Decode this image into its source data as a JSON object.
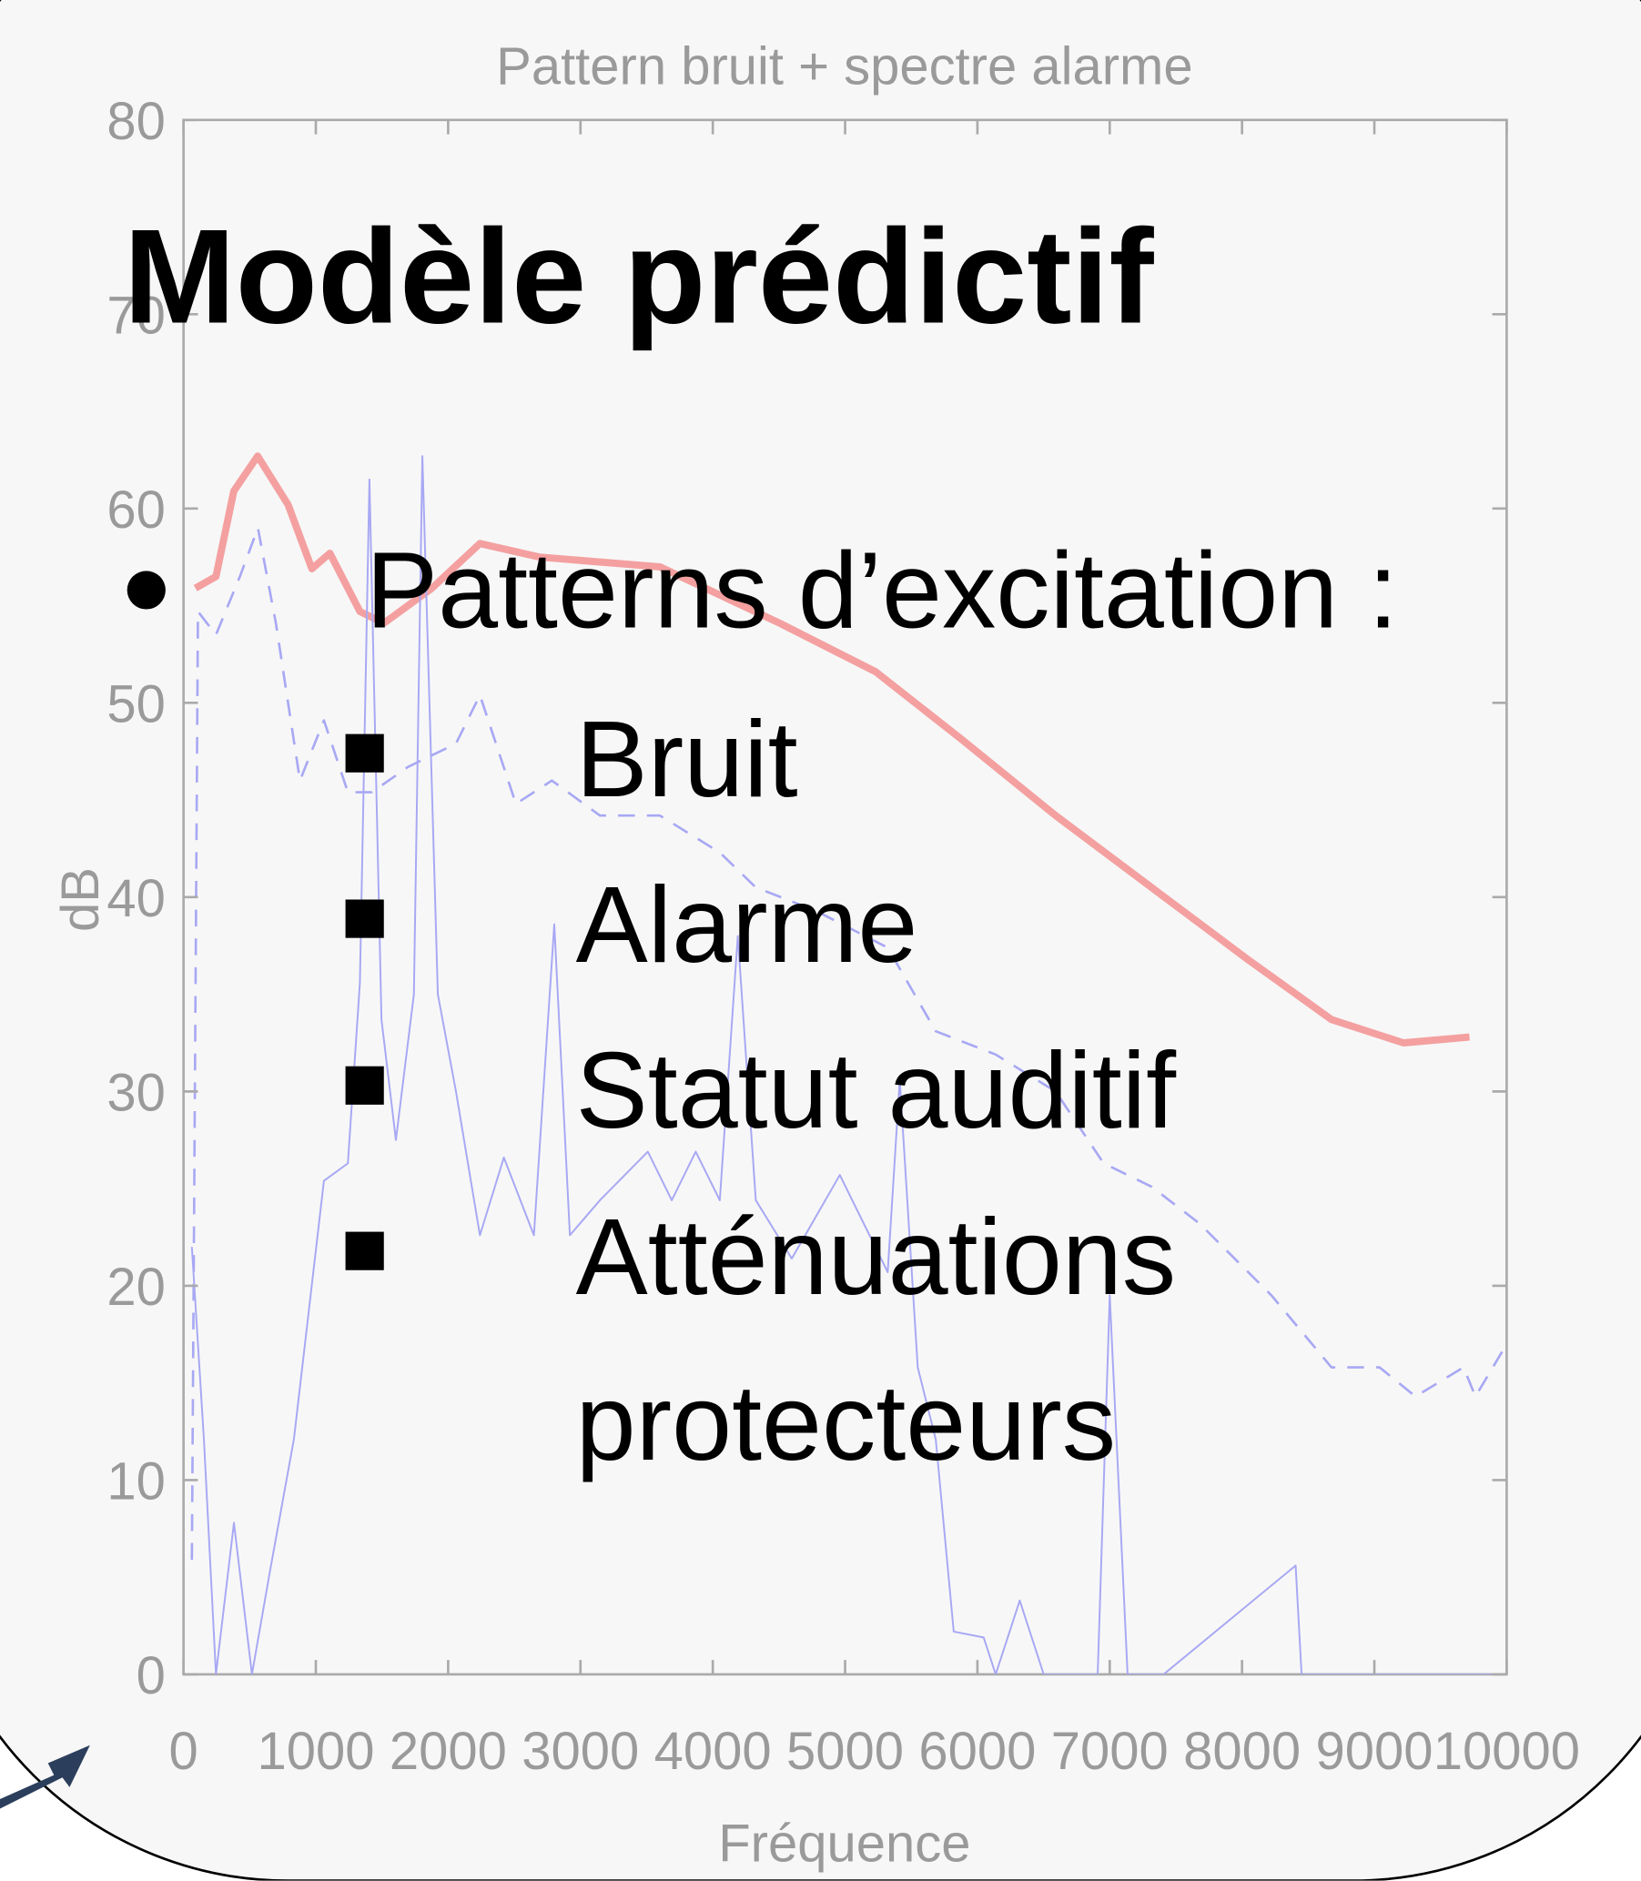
{
  "slide": {
    "title": "Modèle prédictif",
    "bullet": "Patterns d’excitation :",
    "items": [
      "Bruit",
      "Alarme",
      "Statut auditif",
      "Atténuations protecteurs"
    ]
  },
  "chart_data": {
    "type": "line",
    "title": "Pattern bruit + spectre alarme",
    "x_label": "Fréquence",
    "y_label": "dB",
    "xlim": [
      0,
      10000
    ],
    "ylim": [
      0,
      80
    ],
    "xticks": [
      0,
      1000,
      2000,
      3000,
      4000,
      5000,
      6000,
      7000,
      8000,
      9000,
      10000
    ],
    "yticks": [
      0,
      10,
      20,
      30,
      40,
      50,
      60,
      70,
      80
    ],
    "series": [
      {
        "color": "#f4a0a0",
        "line_style": "solid",
        "linewidth": 6,
        "x": [
          90,
          245,
          380,
          560,
          790,
          970,
          1106,
          1333,
          1514,
          1877,
          2240,
          2693,
          3600,
          4506,
          5231,
          5866,
          6591,
          7316,
          8042,
          8676,
          9220,
          9719
        ],
        "values": [
          55.9,
          56.5,
          60.9,
          62.7,
          60.2,
          56.9,
          57.7,
          54.7,
          54.1,
          55.9,
          58.2,
          57.5,
          57.0,
          54.1,
          51.6,
          48.2,
          44.2,
          40.5,
          36.8,
          33.7,
          32.5,
          32.8
        ]
      },
      {
        "color": "#a8a8f4",
        "line_style": "dashed",
        "linewidth": 2,
        "x": [
          63,
          109,
          245,
          426,
          562,
          698,
          880,
          1061,
          1242,
          1424,
          1696,
          2059,
          2240,
          2512,
          2784,
          3147,
          3600,
          4053,
          4325,
          4778,
          5322,
          5685,
          6138,
          6591,
          6954,
          7316,
          7679,
          8223,
          8676,
          9039,
          9311,
          9674,
          9764,
          10000
        ],
        "values": [
          5.9,
          54.7,
          53.5,
          56.5,
          59.0,
          54.1,
          46.0,
          49.1,
          45.4,
          45.4,
          46.7,
          47.9,
          50.4,
          44.8,
          46.0,
          44.2,
          44.2,
          42.3,
          40.5,
          39.3,
          37.4,
          33.1,
          31.9,
          30.0,
          26.3,
          25.1,
          23.2,
          19.5,
          15.8,
          15.8,
          14.3,
          15.8,
          14.3,
          17.0
        ]
      },
      {
        "color": "#a8a8f4",
        "line_style": "solid",
        "linewidth": 1.5,
        "x": [
          63,
          154,
          245,
          381,
          517,
          653,
          834,
          1061,
          1242,
          1333,
          1405,
          1496,
          1605,
          1741,
          1805,
          1922,
          2059,
          2240,
          2421,
          2648,
          2802,
          2920,
          3147,
          3509,
          3690,
          3871,
          4053,
          4189,
          4325,
          4597,
          4960,
          5322,
          5413,
          5549,
          5685,
          5821,
          6047,
          6138,
          6320,
          6501,
          6909,
          7000,
          7135,
          7407,
          8405,
          8450,
          10000
        ],
        "values": [
          22,
          12.1,
          0,
          7.8,
          0,
          5.3,
          12.1,
          25.4,
          26.3,
          35.6,
          61.5,
          33.7,
          27.5,
          35.0,
          62.7,
          35.0,
          30.0,
          22.6,
          26.6,
          22.6,
          38.6,
          22.6,
          24.4,
          26.9,
          24.4,
          26.9,
          24.4,
          38.0,
          24.4,
          21.4,
          25.7,
          20.7,
          30.6,
          15.8,
          12.1,
          2.2,
          1.9,
          0,
          3.8,
          0,
          0,
          19.5,
          0,
          0,
          5.6,
          0,
          0
        ]
      }
    ]
  }
}
